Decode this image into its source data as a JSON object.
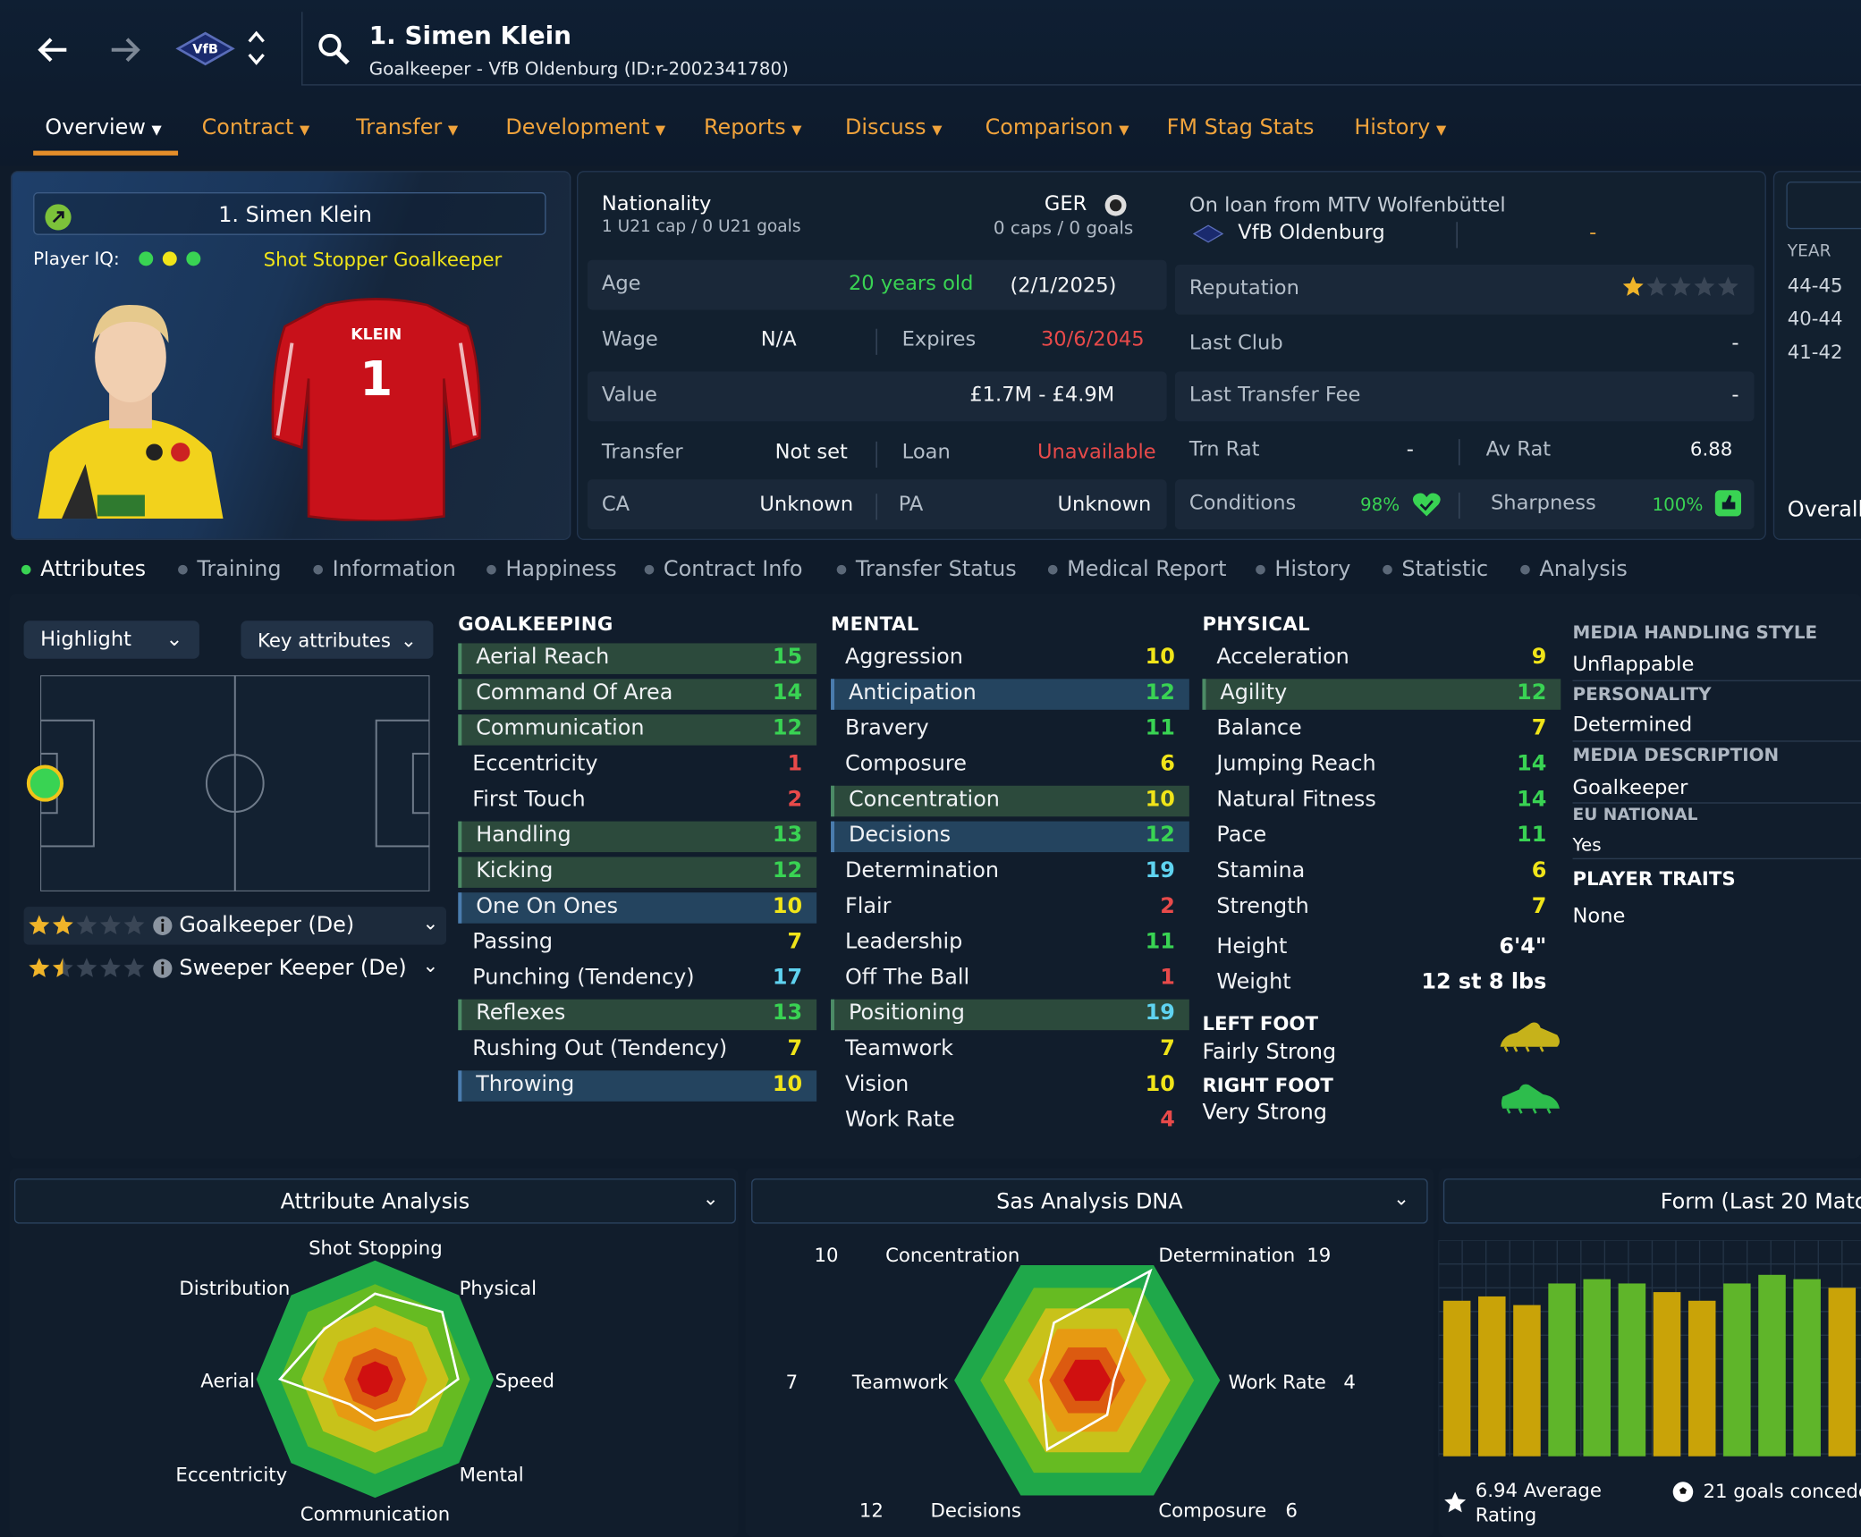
{
  "header": {
    "title": "1. Simen Klein",
    "subtitle": "Goalkeeper - VfB Oldenburg (ID:r-2002341780)",
    "club_badge": "VfB"
  },
  "tabs": [
    {
      "label": "Overview"
    },
    {
      "label": "Contract"
    },
    {
      "label": "Transfer"
    },
    {
      "label": "Development"
    },
    {
      "label": "Reports"
    },
    {
      "label": "Discuss"
    },
    {
      "label": "Comparison"
    },
    {
      "label": "FM Stag Stats"
    },
    {
      "label": "History"
    }
  ],
  "profile": {
    "name": "1. Simen Klein",
    "iq_label": "Player IQ:",
    "role": "Shot Stopper Goalkeeper",
    "shirt_name": "KLEIN",
    "shirt_number": "1"
  },
  "nationality": {
    "label": "Nationality",
    "country": "GER",
    "u21": "1 U21 cap / 0 U21 goals",
    "caps": "0 caps / 0 goals"
  },
  "details": {
    "age_label": "Age",
    "age": "20 years old",
    "dob": "(2/1/2025)",
    "wage_label": "Wage",
    "wage": "N/A",
    "expires_label": "Expires",
    "expires": "30/6/2045",
    "value_label": "Value",
    "value": "£1.7M - £4.9M",
    "transfer_label": "Transfer",
    "transfer": "Not set",
    "loan_label": "Loan",
    "loan": "Unavailable",
    "ca_label": "CA",
    "ca": "Unknown",
    "pa_label": "PA",
    "pa": "Unknown"
  },
  "club": {
    "loan_from": "On loan from MTV Wolfenbüttel",
    "club_name": "VfB Oldenburg",
    "dash": "-",
    "reputation_label": "Reputation",
    "reputation_stars": 1,
    "last_club_label": "Last Club",
    "last_club": "-",
    "last_fee_label": "Last Transfer Fee",
    "last_fee": "-",
    "trn_rat_label": "Trn Rat",
    "trn_rat": "-",
    "av_rat_label": "Av Rat",
    "av_rat": "6.88",
    "conditions_label": "Conditions",
    "conditions": "98%",
    "sharpness_label": "Sharpness",
    "sharpness": "100%"
  },
  "history_panel": {
    "year_label": "YEAR",
    "years": [
      "44-45",
      "40-44",
      "41-42"
    ],
    "overall": "Overall"
  },
  "subtabs": [
    {
      "label": "Attributes"
    },
    {
      "label": "Training"
    },
    {
      "label": "Information"
    },
    {
      "label": "Happiness"
    },
    {
      "label": "Contract Info"
    },
    {
      "label": "Transfer Status"
    },
    {
      "label": "Medical Report"
    },
    {
      "label": "History"
    },
    {
      "label": "Statistic"
    },
    {
      "label": "Analysis"
    }
  ],
  "controls": {
    "highlight": "Highlight",
    "key_attributes": "Key attributes"
  },
  "roles": [
    {
      "name": "Goalkeeper (De)",
      "stars": 2
    },
    {
      "name": "Sweeper Keeper (De)",
      "stars": 1.5
    }
  ],
  "goalkeeping": {
    "title": "GOALKEEPING",
    "rows": [
      {
        "name": "Aerial Reach",
        "value": "15",
        "hl": "green"
      },
      {
        "name": "Command Of Area",
        "value": "14",
        "hl": "green"
      },
      {
        "name": "Communication",
        "value": "12",
        "hl": "green"
      },
      {
        "name": "Eccentricity",
        "value": "1",
        "hl": ""
      },
      {
        "name": "First Touch",
        "value": "2",
        "hl": ""
      },
      {
        "name": "Handling",
        "value": "13",
        "hl": "green"
      },
      {
        "name": "Kicking",
        "value": "12",
        "hl": "green"
      },
      {
        "name": "One On Ones",
        "value": "10",
        "hl": "blue"
      },
      {
        "name": "Passing",
        "value": "7",
        "hl": ""
      },
      {
        "name": "Punching (Tendency)",
        "value": "17",
        "hl": ""
      },
      {
        "name": "Reflexes",
        "value": "13",
        "hl": "green"
      },
      {
        "name": "Rushing Out (Tendency)",
        "value": "7",
        "hl": ""
      },
      {
        "name": "Throwing",
        "value": "10",
        "hl": "blue"
      }
    ]
  },
  "mental": {
    "title": "MENTAL",
    "rows": [
      {
        "name": "Aggression",
        "value": "10",
        "hl": ""
      },
      {
        "name": "Anticipation",
        "value": "12",
        "hl": "blue"
      },
      {
        "name": "Bravery",
        "value": "11",
        "hl": ""
      },
      {
        "name": "Composure",
        "value": "6",
        "hl": ""
      },
      {
        "name": "Concentration",
        "value": "10",
        "hl": "green"
      },
      {
        "name": "Decisions",
        "value": "12",
        "hl": "blue"
      },
      {
        "name": "Determination",
        "value": "19",
        "hl": ""
      },
      {
        "name": "Flair",
        "value": "2",
        "hl": ""
      },
      {
        "name": "Leadership",
        "value": "11",
        "hl": ""
      },
      {
        "name": "Off The Ball",
        "value": "1",
        "hl": ""
      },
      {
        "name": "Positioning",
        "value": "19",
        "hl": "green"
      },
      {
        "name": "Teamwork",
        "value": "7",
        "hl": ""
      },
      {
        "name": "Vision",
        "value": "10",
        "hl": ""
      },
      {
        "name": "Work Rate",
        "value": "4",
        "hl": ""
      }
    ]
  },
  "physical": {
    "title": "PHYSICAL",
    "rows": [
      {
        "name": "Acceleration",
        "value": "9",
        "hl": ""
      },
      {
        "name": "Agility",
        "value": "12",
        "hl": "green"
      },
      {
        "name": "Balance",
        "value": "7",
        "hl": ""
      },
      {
        "name": "Jumping Reach",
        "value": "14",
        "hl": ""
      },
      {
        "name": "Natural Fitness",
        "value": "14",
        "hl": ""
      },
      {
        "name": "Pace",
        "value": "11",
        "hl": ""
      },
      {
        "name": "Stamina",
        "value": "6",
        "hl": ""
      },
      {
        "name": "Strength",
        "value": "7",
        "hl": ""
      }
    ],
    "height_label": "Height",
    "height": "6'4\"",
    "weight_label": "Weight",
    "weight": "12 st 8 lbs",
    "left_foot_label": "LEFT FOOT",
    "left_foot": "Fairly Strong",
    "right_foot_label": "RIGHT FOOT",
    "right_foot": "Very Strong"
  },
  "info": {
    "media_style_label": "MEDIA HANDLING STYLE",
    "media_style": "Unflappable",
    "personality_label": "PERSONALITY",
    "personality": "Determined",
    "media_desc_label": "MEDIA DESCRIPTION",
    "media_desc": "Goalkeeper",
    "eu_label": "EU NATIONAL",
    "eu": "Yes",
    "traits_label": "PLAYER TRAITS",
    "traits": "None"
  },
  "attribute_analysis": {
    "title": "Attribute Analysis",
    "axes": [
      "Shot Stopping",
      "Physical",
      "Speed",
      "Mental",
      "Communication",
      "Eccentricity",
      "Aerial",
      "Distribution"
    ],
    "levels": [
      0.72,
      0.8,
      0.7,
      0.42,
      0.35,
      0.3,
      0.8,
      0.6
    ]
  },
  "sas_dna": {
    "title": "Sas Analysis DNA",
    "axes": [
      {
        "name": "Determination",
        "value": "19"
      },
      {
        "name": "Work Rate",
        "value": "4"
      },
      {
        "name": "Composure",
        "value": "6"
      },
      {
        "name": "Decisions",
        "value": "12"
      },
      {
        "name": "Teamwork",
        "value": "7"
      },
      {
        "name": "Concentration",
        "value": "10"
      }
    ]
  },
  "form": {
    "title": "Form (Last 20 Matc",
    "avg_rating": "6.94 Average Rating",
    "goals": "21 goals concede",
    "bars": [
      {
        "v": 6.8,
        "c": "#c9a308"
      },
      {
        "v": 6.85,
        "c": "#c9a308"
      },
      {
        "v": 6.75,
        "c": "#c9a308"
      },
      {
        "v": 7.0,
        "c": "#5fb52a"
      },
      {
        "v": 7.05,
        "c": "#5fb52a"
      },
      {
        "v": 7.0,
        "c": "#5fb52a"
      },
      {
        "v": 6.9,
        "c": "#c9a308"
      },
      {
        "v": 6.8,
        "c": "#c9a308"
      },
      {
        "v": 7.0,
        "c": "#5fb52a"
      },
      {
        "v": 7.1,
        "c": "#5fb52a"
      },
      {
        "v": 7.05,
        "c": "#5fb52a"
      },
      {
        "v": 6.95,
        "c": "#c9a308"
      }
    ]
  },
  "colors": {
    "accent": "#e58e2a",
    "green": "#39d353",
    "red": "#e84a4a",
    "yellow": "#f0c419"
  }
}
